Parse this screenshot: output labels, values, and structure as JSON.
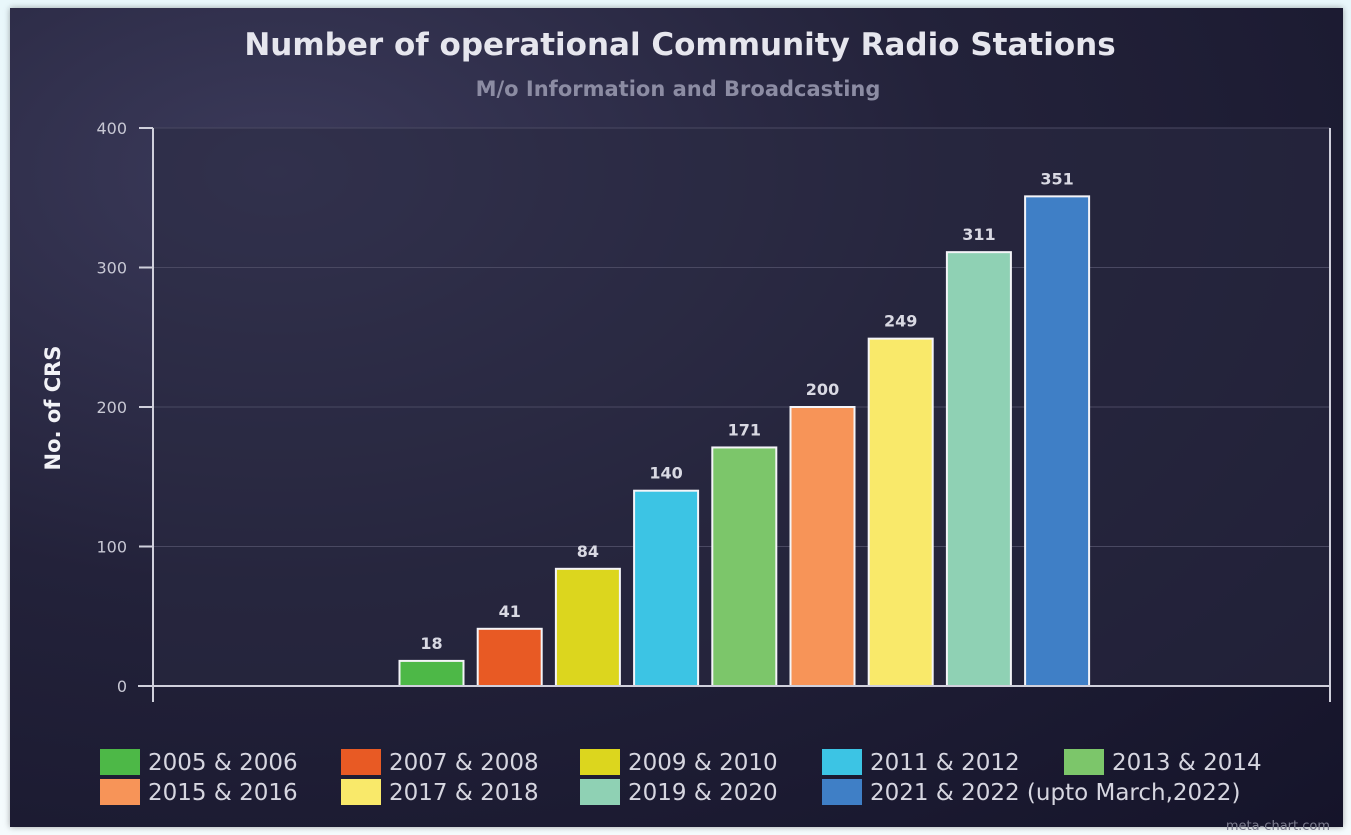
{
  "chart_data": {
    "type": "bar",
    "title": "Number of operational Community Radio Stations",
    "subtitle": "M/o Information and Broadcasting",
    "ylabel": "No. of CRS",
    "xlabel": "",
    "ylim": [
      0,
      400
    ],
    "yticks": [
      0,
      100,
      200,
      300,
      400
    ],
    "grid": true,
    "legend_position": "bottom",
    "categories": [
      "2005 & 2006",
      "2007 & 2008",
      "2009 & 2010",
      "2011 & 2012",
      "2013 & 2014",
      "2015 & 2016",
      "2017 & 2018",
      "2019 & 2020",
      "2021 & 2022 (upto March,2022)"
    ],
    "values": [
      18,
      41,
      84,
      140,
      171,
      200,
      249,
      311,
      351
    ],
    "colors": [
      "#4db847",
      "#e85a24",
      "#dcd61e",
      "#3cc4e4",
      "#7cc66a",
      "#f79458",
      "#f9e96a",
      "#8fd1b4",
      "#3f7fc6"
    ]
  },
  "watermark": "meta-chart.com",
  "theme": {
    "background": "#1f1e36",
    "grid": "#4a4962",
    "axis": "#d0d0dc"
  }
}
